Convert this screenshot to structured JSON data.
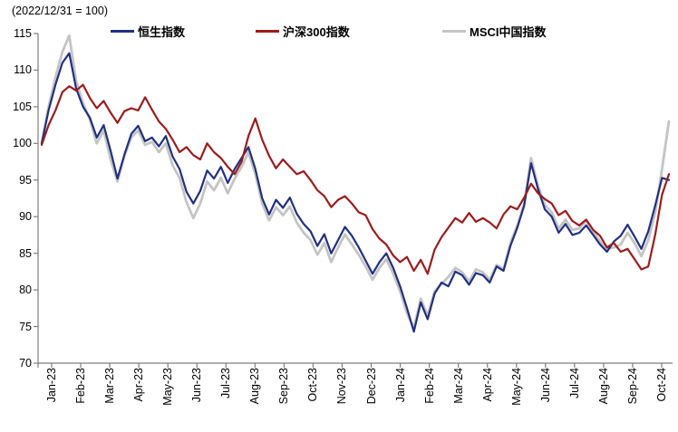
{
  "chart_data": {
    "type": "line",
    "title": "(2022/12/31 = 100)",
    "xlabel": "",
    "ylabel": "",
    "ylim": [
      70,
      115
    ],
    "y_ticks": [
      70,
      75,
      80,
      85,
      90,
      95,
      100,
      105,
      110,
      115
    ],
    "x_tick_labels": [
      "Jan-23",
      "Feb-23",
      "Mar-23",
      "Apr-23",
      "May-23",
      "Jun-23",
      "Jul-23",
      "Aug-23",
      "Sep-23",
      "Oct-23",
      "Nov-23",
      "Dec-23",
      "Jan-24",
      "Feb-24",
      "Mar-24",
      "Apr-24",
      "May-24",
      "Jun-24",
      "Jul-24",
      "Aug-24",
      "Sep-24",
      "Oct-24"
    ],
    "grid": false,
    "legend_position": "top",
    "axis_color": "#7f7f7f",
    "text_color": "#000000",
    "draw_order": [
      2,
      0,
      1
    ],
    "series": [
      {
        "name": "恒生指数",
        "color": "#203081",
        "width": 2.2,
        "values": [
          100,
          104.5,
          108,
          111,
          112.3,
          107.5,
          105,
          103.5,
          100.8,
          102.5,
          99,
          95.2,
          98.5,
          101.3,
          102.4,
          100.3,
          100.8,
          99.6,
          101,
          98.2,
          96.5,
          93.4,
          91.8,
          93.5,
          96.3,
          95.2,
          96.8,
          94.6,
          96.5,
          98,
          99.5,
          96.5,
          92.5,
          90.3,
          92.3,
          91.2,
          92.6,
          90.4,
          89,
          88,
          86,
          87.6,
          85,
          86.8,
          88.6,
          87.4,
          85.8,
          84,
          82.2,
          83.8,
          85,
          83,
          80.5,
          77.5,
          74.3,
          78.3,
          76,
          79.5,
          81,
          80.5,
          82.5,
          82,
          80.7,
          82.3,
          82,
          81,
          83.2,
          82.6,
          86,
          88.5,
          91.5,
          97.3,
          93.8,
          91,
          90,
          87.8,
          89,
          87.5,
          87.8,
          88.8,
          87.5,
          86.2,
          85.2,
          86.6,
          87.4,
          88.9,
          87.3,
          85.6,
          88,
          91.5,
          95.3,
          95
        ]
      },
      {
        "name": "沪深300指数",
        "color": "#9b1c1c",
        "width": 2.2,
        "values": [
          99.8,
          102.5,
          104.5,
          107,
          107.8,
          107.2,
          108,
          106.2,
          104.8,
          105.8,
          104.2,
          102.8,
          104.4,
          104.8,
          104.5,
          106.3,
          104.6,
          103,
          102,
          100.5,
          98.8,
          99.5,
          98.4,
          97.8,
          100,
          98.8,
          98,
          96.8,
          95.8,
          97.5,
          101,
          103.4,
          100.5,
          98.3,
          96.6,
          97.8,
          96.8,
          95.8,
          96.2,
          95,
          93.6,
          92.8,
          91.3,
          92.3,
          92.8,
          91.8,
          90.6,
          90.2,
          88.3,
          87,
          86.2,
          84.7,
          83.8,
          84.5,
          82.6,
          84.1,
          82.2,
          85.5,
          87.2,
          88.5,
          89.8,
          89.2,
          90.5,
          89.3,
          89.8,
          89.2,
          88.4,
          90.3,
          91.4,
          91,
          92.6,
          94.5,
          93.2,
          92.4,
          91.8,
          90.2,
          90.8,
          89.4,
          88.8,
          89.6,
          88.2,
          87.4,
          85.8,
          86.4,
          85.2,
          85.6,
          84.2,
          82.8,
          83.2,
          87.5,
          93,
          95.8
        ]
      },
      {
        "name": "MSCI中国指数",
        "color": "#c4c4c4",
        "width": 2.8,
        "values": [
          100,
          105,
          109,
          112.5,
          114.7,
          108.5,
          105.5,
          103.2,
          100,
          101.8,
          97.8,
          94.8,
          98.3,
          100.8,
          101.8,
          99.8,
          100.2,
          98.8,
          100,
          97,
          95.3,
          92,
          89.8,
          91.8,
          94.8,
          93.6,
          95.3,
          93.2,
          95.2,
          96.8,
          98.8,
          95.8,
          91.8,
          89.5,
          91.3,
          90.2,
          91.4,
          89.2,
          87.8,
          86.8,
          84.8,
          86.4,
          83.8,
          85.8,
          87.6,
          86.2,
          84.8,
          83.2,
          81.4,
          83,
          84.2,
          82.2,
          79.8,
          76.8,
          74.8,
          78.8,
          76.5,
          79.8,
          80.8,
          81.8,
          83,
          82.4,
          81.2,
          82.8,
          82.4,
          81.4,
          83.4,
          82.8,
          86.4,
          88.8,
          91.8,
          98,
          94.2,
          91.6,
          90.6,
          88.4,
          89.6,
          88.2,
          88.4,
          89.4,
          88,
          86.6,
          85.6,
          85.8,
          86.2,
          87.8,
          86.4,
          84.6,
          86.8,
          90.5,
          96.5,
          103
        ]
      }
    ]
  }
}
